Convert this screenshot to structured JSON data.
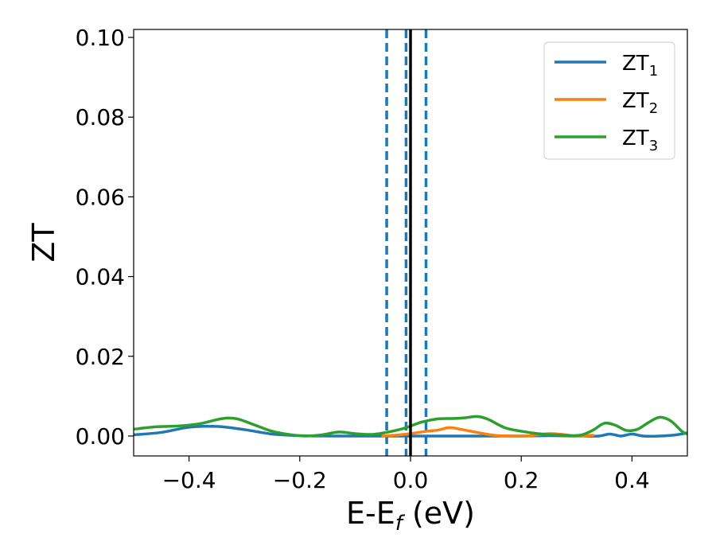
{
  "chart_data": {
    "type": "line",
    "xlabel": {
      "base": "E-E",
      "sub": "f",
      "suffix": " (eV)"
    },
    "ylabel": "ZT",
    "xlim": [
      -0.5,
      0.5
    ],
    "ylim": [
      -0.005,
      0.102
    ],
    "x_ticks": [
      -0.4,
      -0.2,
      0.0,
      0.2,
      0.4
    ],
    "x_tick_labels": [
      "−0.4",
      "−0.2",
      "0.0",
      "0.2",
      "0.4"
    ],
    "y_ticks": [
      0.0,
      0.02,
      0.04,
      0.06,
      0.08,
      0.1
    ],
    "y_tick_labels": [
      "0.00",
      "0.02",
      "0.04",
      "0.06",
      "0.08",
      "0.10"
    ],
    "grid": false,
    "legend_position": "top-right",
    "vertical_lines": [
      {
        "x": -0.043,
        "style": "dashed",
        "color": "#1f77b4"
      },
      {
        "x": -0.008,
        "style": "dashed",
        "color": "#1f77b4"
      },
      {
        "x": 0.028,
        "style": "dashed",
        "color": "#1f77b4"
      },
      {
        "x": 0.0,
        "style": "solid",
        "color": "#000000"
      }
    ],
    "series": [
      {
        "name": "ZT",
        "sub": "1",
        "color": "#1f77b4",
        "points": [
          [
            -0.5,
            0.0003
          ],
          [
            -0.45,
            0.0009
          ],
          [
            -0.4,
            0.0022
          ],
          [
            -0.35,
            0.0024
          ],
          [
            -0.3,
            0.0016
          ],
          [
            -0.25,
            0.0005
          ],
          [
            -0.2,
            0.0001
          ],
          [
            -0.15,
            0.0
          ],
          [
            -0.1,
            0.0
          ],
          [
            -0.05,
            0.0
          ],
          [
            0.0,
            0.0
          ],
          [
            0.05,
            0.0
          ],
          [
            0.1,
            0.0
          ],
          [
            0.15,
            0.0
          ],
          [
            0.2,
            0.0
          ],
          [
            0.25,
            0.0001
          ],
          [
            0.3,
            0.0
          ],
          [
            0.34,
            0.0
          ],
          [
            0.36,
            0.0005
          ],
          [
            0.38,
            0.0
          ],
          [
            0.4,
            0.0005
          ],
          [
            0.42,
            0.0
          ],
          [
            0.45,
            0.0
          ],
          [
            0.48,
            0.0003
          ],
          [
            0.5,
            0.0008
          ]
        ]
      },
      {
        "name": "ZT",
        "sub": "2",
        "color": "#ff7f0e",
        "points": [
          [
            -0.05,
            0.0
          ],
          [
            -0.02,
            0.0003
          ],
          [
            0.0,
            0.0006
          ],
          [
            0.03,
            0.0012
          ],
          [
            0.05,
            0.0015
          ],
          [
            0.07,
            0.0021
          ],
          [
            0.09,
            0.0017
          ],
          [
            0.12,
            0.0009
          ],
          [
            0.15,
            0.0002
          ],
          [
            0.18,
            0.0
          ],
          [
            0.21,
            0.0
          ],
          [
            0.25,
            0.0006
          ],
          [
            0.28,
            0.0003
          ],
          [
            0.3,
            0.0
          ],
          [
            0.33,
            0.0002
          ]
        ]
      },
      {
        "name": "ZT",
        "sub": "3",
        "color": "#2ca02c",
        "points": [
          [
            -0.5,
            0.0017
          ],
          [
            -0.46,
            0.0023
          ],
          [
            -0.42,
            0.0025
          ],
          [
            -0.38,
            0.0031
          ],
          [
            -0.35,
            0.0041
          ],
          [
            -0.33,
            0.0045
          ],
          [
            -0.31,
            0.0042
          ],
          [
            -0.28,
            0.0027
          ],
          [
            -0.25,
            0.0012
          ],
          [
            -0.22,
            0.0004
          ],
          [
            -0.19,
            0.0
          ],
          [
            -0.16,
            0.0003
          ],
          [
            -0.13,
            0.001
          ],
          [
            -0.1,
            0.0006
          ],
          [
            -0.07,
            0.0004
          ],
          [
            -0.04,
            0.001
          ],
          [
            -0.01,
            0.002
          ],
          [
            0.02,
            0.0035
          ],
          [
            0.05,
            0.0043
          ],
          [
            0.08,
            0.0044
          ],
          [
            0.1,
            0.0046
          ],
          [
            0.12,
            0.0049
          ],
          [
            0.14,
            0.0042
          ],
          [
            0.17,
            0.0021
          ],
          [
            0.2,
            0.0012
          ],
          [
            0.23,
            0.0006
          ],
          [
            0.26,
            0.0003
          ],
          [
            0.29,
            0.0001
          ],
          [
            0.31,
            0.0003
          ],
          [
            0.33,
            0.0015
          ],
          [
            0.35,
            0.0032
          ],
          [
            0.37,
            0.0027
          ],
          [
            0.39,
            0.0014
          ],
          [
            0.41,
            0.0017
          ],
          [
            0.43,
            0.0034
          ],
          [
            0.45,
            0.0047
          ],
          [
            0.47,
            0.0038
          ],
          [
            0.49,
            0.0012
          ],
          [
            0.5,
            0.0005
          ]
        ]
      }
    ]
  }
}
